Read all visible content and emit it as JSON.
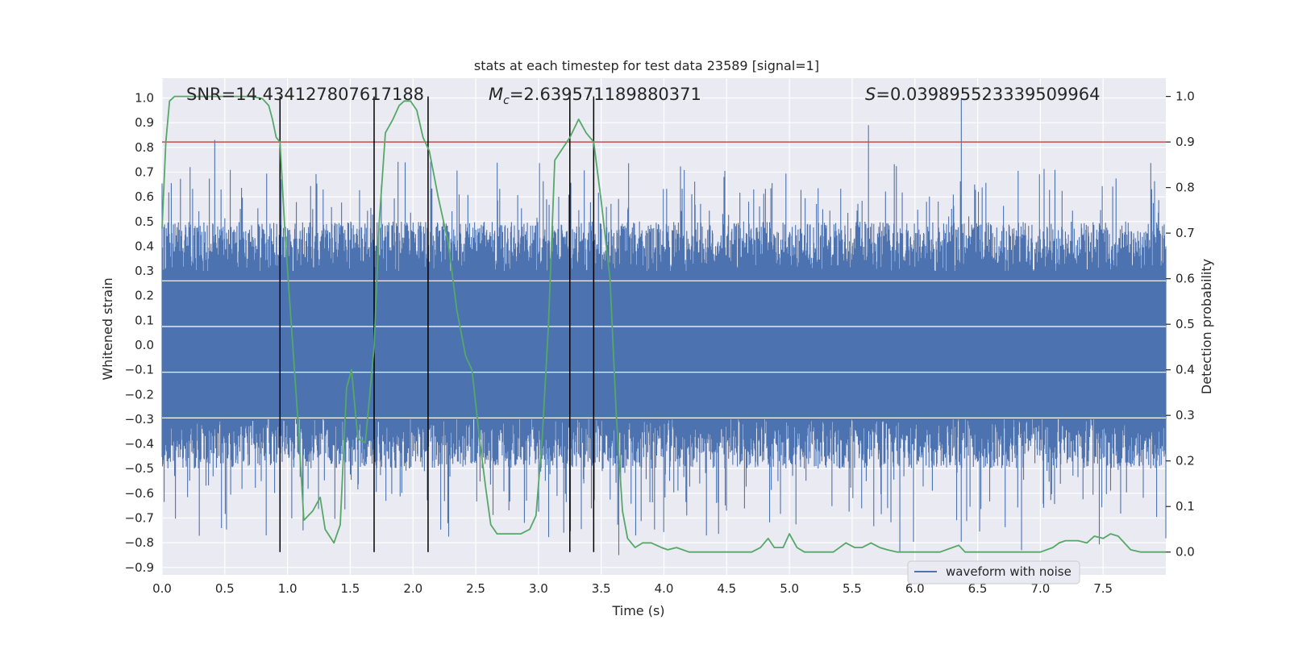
{
  "chart_data": {
    "type": "line",
    "title": "stats at each timestep for test data 23589 [signal=1]",
    "xlabel": "Time (s)",
    "ylabel_left": "Whitened strain",
    "ylabel_right": "Detection probability",
    "xlim": [
      0,
      8
    ],
    "ylim_left": [
      -0.93,
      1.08
    ],
    "ylim_right": [
      -0.05,
      1.04
    ],
    "x_ticks": [
      0.0,
      0.5,
      1.0,
      1.5,
      2.0,
      2.5,
      3.0,
      3.5,
      4.0,
      4.5,
      5.0,
      5.5,
      6.0,
      6.5,
      7.0,
      7.5
    ],
    "y_left_ticks": [
      -0.9,
      -0.8,
      -0.7,
      -0.6,
      -0.5,
      -0.4,
      -0.3,
      -0.2,
      -0.1,
      0.0,
      0.1,
      0.2,
      0.3,
      0.4,
      0.5,
      0.6,
      0.7,
      0.8,
      0.9,
      1.0
    ],
    "y_right_ticks": [
      0.0,
      0.1,
      0.2,
      0.3,
      0.4,
      0.5,
      0.6,
      0.7,
      0.8,
      0.9,
      1.0
    ],
    "x_tick_labels": [
      "0.0",
      "0.5",
      "1.0",
      "1.5",
      "2.0",
      "2.5",
      "3.0",
      "3.5",
      "4.0",
      "4.5",
      "5.0",
      "5.5",
      "6.0",
      "6.5",
      "7.0",
      "7.5"
    ],
    "y_left_tick_labels": [
      "−0.9",
      "−0.8",
      "−0.7",
      "−0.6",
      "−0.5",
      "−0.4",
      "−0.3",
      "−0.2",
      "−0.1",
      "0.0",
      "0.1",
      "0.2",
      "0.3",
      "0.4",
      "0.5",
      "0.6",
      "0.7",
      "0.8",
      "0.9",
      "1.0"
    ],
    "y_right_tick_labels": [
      "0.0",
      "0.1",
      "0.2",
      "0.3",
      "0.4",
      "0.5",
      "0.6",
      "0.7",
      "0.8",
      "0.9",
      "1.0"
    ],
    "annotations": {
      "snr": "SNR=14.434127807617188",
      "mc_symbol": "M",
      "mc_sub": "c",
      "mc_value": "=2.639571189880371",
      "s_symbol": "S",
      "s_value": "=0.039895523339509964"
    },
    "grid": true,
    "legend": {
      "placement": "bottom-center",
      "entries": [
        "waveform with noise"
      ]
    },
    "threshold_line": {
      "axis": "right",
      "y": 0.9,
      "color": "#c44e52"
    },
    "vertical_markers": {
      "x": [
        0.94,
        1.69,
        2.12,
        3.25,
        3.44
      ],
      "y_range_right": [
        0.0,
        1.0
      ],
      "color": "#000000"
    },
    "series": [
      {
        "name": "waveform with noise",
        "axis": "left",
        "color": "#4c72b0",
        "style": "noise-band",
        "core_range": [
          -0.3,
          0.3
        ],
        "notable_peaks": [
          {
            "x": 0.42,
            "y": 0.83
          },
          {
            "x": 5.63,
            "y": 0.89
          },
          {
            "x": 6.37,
            "y": 1.0
          },
          {
            "x": 3.64,
            "y": -0.85
          },
          {
            "x": 5.88,
            "y": -0.84
          },
          {
            "x": 6.85,
            "y": -0.83
          },
          {
            "x": 0.83,
            "y": -0.77
          }
        ]
      },
      {
        "name": "",
        "axis": "right",
        "color": "#55a868",
        "x": [
          0.0,
          0.03,
          0.06,
          0.1,
          0.2,
          0.3,
          0.4,
          0.5,
          0.6,
          0.7,
          0.75,
          0.8,
          0.85,
          0.88,
          0.91,
          0.94,
          0.98,
          1.03,
          1.08,
          1.13,
          1.2,
          1.26,
          1.3,
          1.37,
          1.42,
          1.47,
          1.51,
          1.56,
          1.62,
          1.69,
          1.73,
          1.78,
          1.84,
          1.89,
          1.93,
          1.98,
          2.03,
          2.08,
          2.13,
          2.2,
          2.28,
          2.35,
          2.42,
          2.47,
          2.53,
          2.58,
          2.62,
          2.67,
          2.72,
          2.8,
          2.86,
          2.93,
          2.98,
          3.03,
          3.08,
          3.13,
          3.25,
          3.32,
          3.38,
          3.44,
          3.5,
          3.57,
          3.62,
          3.67,
          3.71,
          3.77,
          3.83,
          3.9,
          3.98,
          4.03,
          4.1,
          4.2,
          4.3,
          4.5,
          4.7,
          4.77,
          4.83,
          4.88,
          4.95,
          5.0,
          5.06,
          5.12,
          5.2,
          5.35,
          5.45,
          5.52,
          5.58,
          5.65,
          5.72,
          5.78,
          5.86,
          5.94,
          6.05,
          6.2,
          6.3,
          6.35,
          6.4,
          6.5,
          6.6,
          6.8,
          7.0,
          7.1,
          7.15,
          7.2,
          7.3,
          7.37,
          7.43,
          7.5,
          7.56,
          7.62,
          7.67,
          7.72,
          7.8,
          7.9,
          8.0
        ],
        "y": [
          0.71,
          0.9,
          0.99,
          1.0,
          1.0,
          1.0,
          1.0,
          1.0,
          1.0,
          1.0,
          0.998,
          0.995,
          0.98,
          0.95,
          0.91,
          0.9,
          0.7,
          0.5,
          0.3,
          0.07,
          0.09,
          0.12,
          0.05,
          0.02,
          0.06,
          0.36,
          0.4,
          0.25,
          0.24,
          0.45,
          0.72,
          0.92,
          0.95,
          0.98,
          0.99,
          0.99,
          0.97,
          0.91,
          0.88,
          0.78,
          0.68,
          0.53,
          0.43,
          0.4,
          0.25,
          0.14,
          0.06,
          0.04,
          0.04,
          0.04,
          0.04,
          0.05,
          0.08,
          0.25,
          0.5,
          0.86,
          0.91,
          0.95,
          0.92,
          0.9,
          0.77,
          0.6,
          0.3,
          0.09,
          0.03,
          0.01,
          0.02,
          0.02,
          0.01,
          0.005,
          0.01,
          0.0,
          0.0,
          0.0,
          0.0,
          0.01,
          0.03,
          0.01,
          0.01,
          0.04,
          0.01,
          0.0,
          0.0,
          0.0,
          0.02,
          0.01,
          0.01,
          0.02,
          0.01,
          0.005,
          0.0,
          0.0,
          0.0,
          0.0,
          0.01,
          0.015,
          0.0,
          0.0,
          0.0,
          0.0,
          0.0,
          0.01,
          0.02,
          0.025,
          0.025,
          0.02,
          0.035,
          0.03,
          0.04,
          0.035,
          0.02,
          0.005,
          0.0,
          0.0,
          0.0
        ]
      }
    ]
  }
}
